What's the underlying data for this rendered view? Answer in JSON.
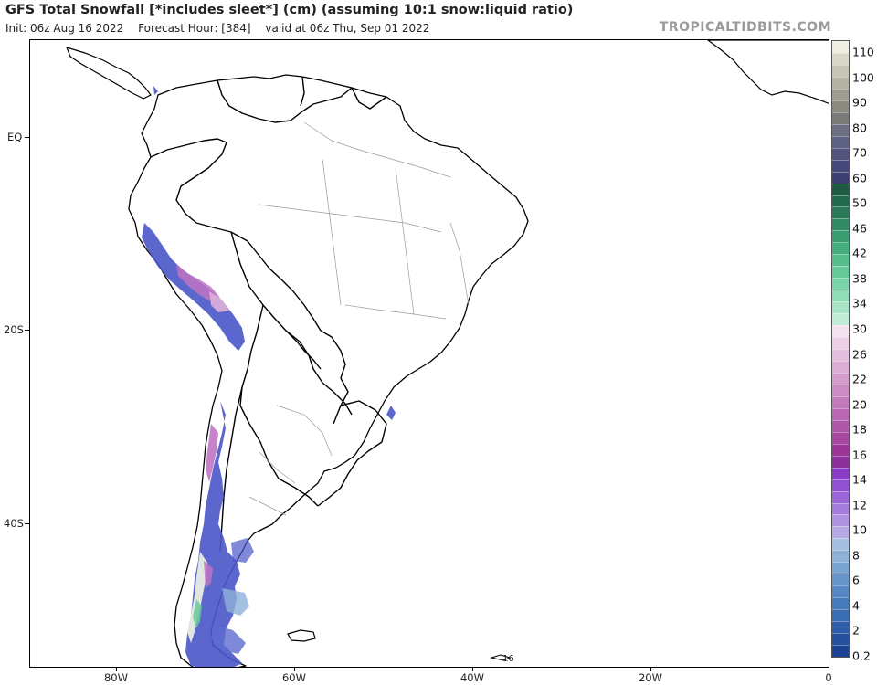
{
  "header": {
    "title": "GFS Total Snowfall [*includes sleet*] (cm) (assuming 10:1 snow:liquid ratio)",
    "init": "Init: 06z Aug 16 2022",
    "forecast_hour": "Forecast Hour: [384]",
    "valid": "valid at 06z Thu, Sep 01 2022",
    "brand": "TROPICALTIDBITS.COM"
  },
  "axes": {
    "lat_labels": [
      "EQ",
      "20S",
      "40S"
    ],
    "lon_labels": [
      "80W",
      "60W",
      "40W",
      "20W",
      "0"
    ]
  },
  "map_annotation": "16",
  "colorbar": {
    "labels": [
      "110",
      "100",
      "90",
      "80",
      "70",
      "60",
      "50",
      "46",
      "42",
      "38",
      "34",
      "30",
      "26",
      "22",
      "20",
      "18",
      "16",
      "14",
      "12",
      "10",
      "8",
      "6",
      "4",
      "2",
      "0.2"
    ],
    "colors": [
      "#eeeee2",
      "#d9d8c9",
      "#c6c5b6",
      "#b2b1a3",
      "#9d9c90",
      "#8a8a7f",
      "#7a7a78",
      "#6c6f84",
      "#5e6282",
      "#51557d",
      "#44487a",
      "#3c3f72",
      "#1f5a45",
      "#23694f",
      "#2a7a5a",
      "#328b65",
      "#3b9c71",
      "#46ad7d",
      "#55bc8b",
      "#66c99a",
      "#7ad3a9",
      "#90dcb7",
      "#a8e4c6",
      "#c0ecd5",
      "#f4e2ee",
      "#ecd0e6",
      "#e4bfdd",
      "#dcaed5",
      "#d49dcc",
      "#cb8cc3",
      "#c27abb",
      "#b968b1",
      "#b057a8",
      "#a6469f",
      "#9c3596",
      "#8c2f9a",
      "#8a3cc6",
      "#9050d2",
      "#9a66d8",
      "#a47cdc",
      "#ae92e0",
      "#b8a8e4",
      "#a6bfe0",
      "#8fb2d9",
      "#7aa4d2",
      "#6896cb",
      "#5788c3",
      "#477aba",
      "#3a6cb1",
      "#2e5ea8",
      "#24509e",
      "#1c4294"
    ]
  }
}
